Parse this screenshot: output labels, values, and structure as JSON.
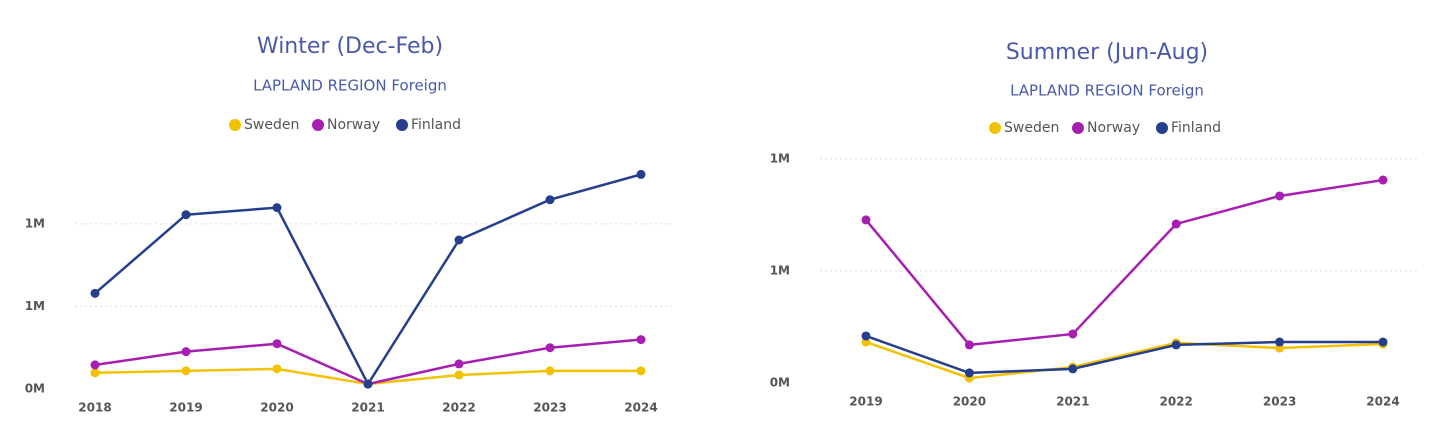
{
  "chart_data": [
    {
      "type": "line",
      "title": "Winter (Dec-Feb)",
      "subtitle": "LAPLAND REGION Foreign",
      "categories": [
        "2018",
        "2019",
        "2020",
        "2021",
        "2022",
        "2023",
        "2024"
      ],
      "series": [
        {
          "name": "Sweden",
          "color": "#f2c200",
          "values": [
            98000,
            110000,
            122000,
            30000,
            85000,
            110000,
            110000
          ]
        },
        {
          "name": "Norway",
          "color": "#a61fb0",
          "values": [
            146000,
            226000,
            274000,
            30000,
            152000,
            250000,
            299000
          ]
        },
        {
          "name": "Finland",
          "color": "#253f8c",
          "values": [
            579000,
            1055000,
            1098000,
            30000,
            902000,
            1146000,
            1299000
          ]
        }
      ],
      "ylim": [
        0,
        1350000
      ],
      "yticks": [
        {
          "value": 0,
          "label": "0M"
        },
        {
          "value": 500000,
          "label": "1M"
        },
        {
          "value": 1000000,
          "label": "1M"
        }
      ],
      "grid": true
    },
    {
      "type": "line",
      "title": "Summer (Jun-Aug)",
      "subtitle": "LAPLAND REGION Foreign",
      "categories": [
        "2019",
        "2020",
        "2021",
        "2022",
        "2023",
        "2024"
      ],
      "series": [
        {
          "name": "Sweden",
          "color": "#f2c200",
          "values": [
            183000,
            22000,
            71000,
            179000,
            156000,
            174000
          ]
        },
        {
          "name": "Norway",
          "color": "#a61fb0",
          "values": [
            728000,
            170000,
            219000,
            710000,
            835000,
            906000
          ]
        },
        {
          "name": "Finland",
          "color": "#253f8c",
          "values": [
            210000,
            45000,
            63000,
            170000,
            183000,
            183000
          ]
        }
      ],
      "ylim": [
        0,
        1000000
      ],
      "yticks": [
        {
          "value": 0,
          "label": "0M"
        },
        {
          "value": 500000,
          "label": "1M"
        },
        {
          "value": 1000000,
          "label": "1M"
        }
      ],
      "grid": true
    }
  ]
}
